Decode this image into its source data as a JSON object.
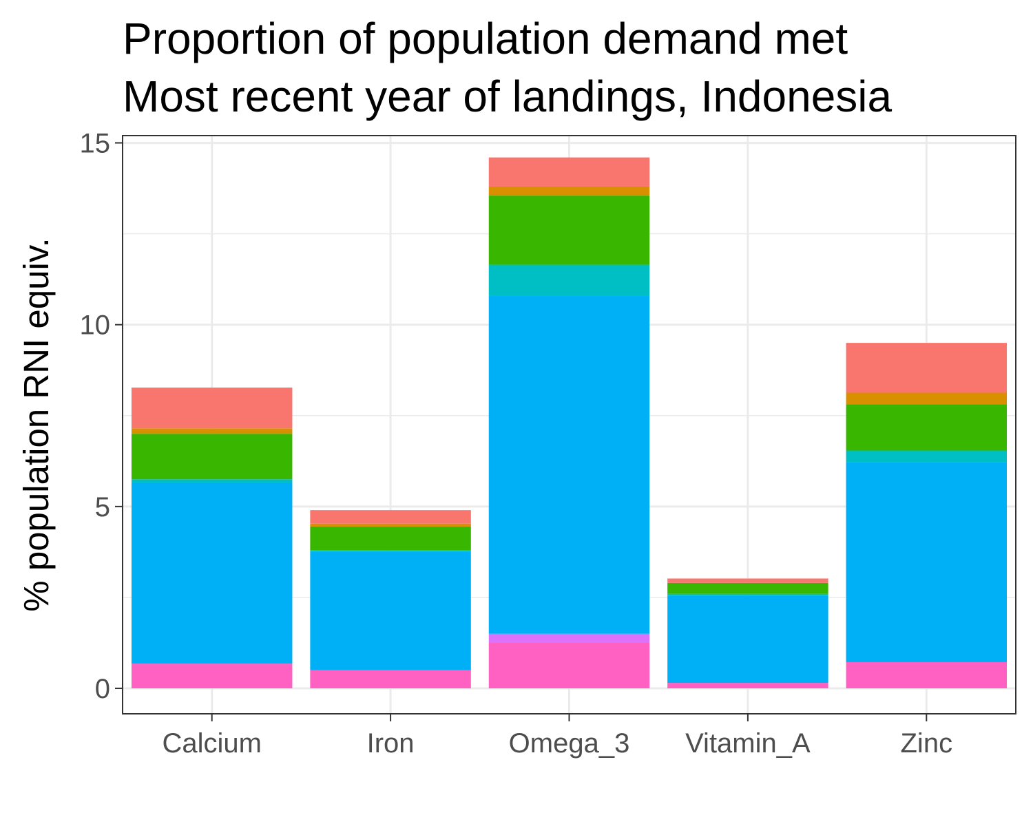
{
  "chart_data": {
    "type": "bar",
    "stacked": true,
    "title_lines": [
      "Proportion of population demand met",
      "Most recent year of landings, Indonesia"
    ],
    "xlabel": "",
    "ylabel": "% population RNI equiv.",
    "categories": [
      "Calcium",
      "Iron",
      "Omega_3",
      "Vitamin_A",
      "Zinc"
    ],
    "ylim": [
      -0.7,
      15.2
    ],
    "yticks": [
      0,
      5,
      10,
      15
    ],
    "grid": true,
    "legend": "none",
    "series": [
      {
        "color": "#FF61C3",
        "values": [
          0.68,
          0.5,
          1.25,
          0.15,
          0.72
        ]
      },
      {
        "color": "#DB72FB",
        "values": [
          0.0,
          0.0,
          0.25,
          0.0,
          0.0
        ]
      },
      {
        "color": "#00B0F6",
        "values": [
          4.97,
          3.25,
          9.3,
          2.4,
          5.5
        ]
      },
      {
        "color": "#00BFC4",
        "values": [
          0.1,
          0.05,
          0.85,
          0.05,
          0.32
        ]
      },
      {
        "color": "#39B600",
        "values": [
          1.25,
          0.65,
          1.9,
          0.3,
          1.27
        ]
      },
      {
        "color": "#D89000",
        "values": [
          0.15,
          0.08,
          0.25,
          0.0,
          0.32
        ]
      },
      {
        "color": "#F8766D",
        "values": [
          1.12,
          0.37,
          0.8,
          0.12,
          1.37
        ]
      }
    ]
  }
}
